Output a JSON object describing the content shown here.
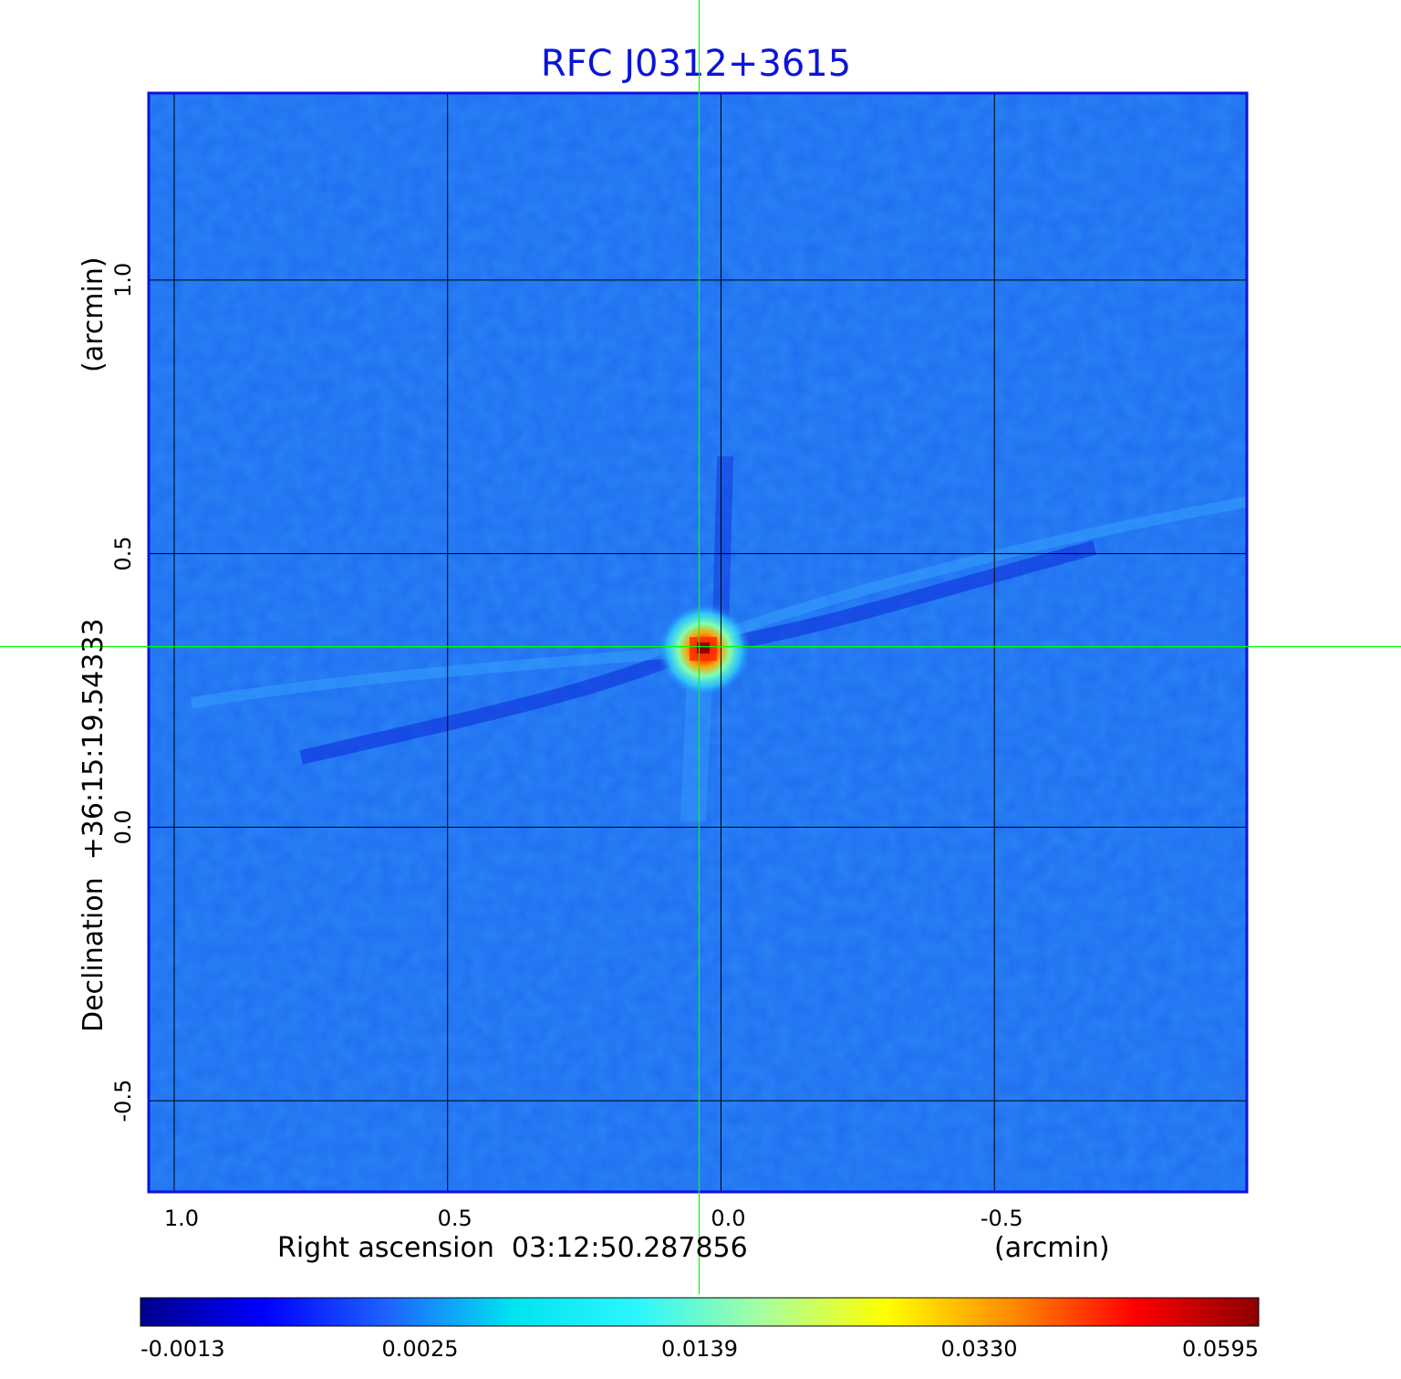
{
  "chart_data": {
    "type": "heatmap",
    "title": "RFC J0312+3615",
    "xlabel": "Right ascension  03:12:50.287856",
    "xlabel_unit": "(arcmin)",
    "ylabel": "Declination  +36:15:19.54333",
    "ylabel_unit": "(arcmin)",
    "x_ticks": [
      "1.0",
      "0.5",
      "0.0",
      "-0.5"
    ],
    "x_tick_values": [
      1.0,
      0.5,
      0.0,
      -0.5
    ],
    "y_ticks": [
      "1.0",
      "0.5",
      "0.0",
      "-0.5"
    ],
    "y_tick_values": [
      1.0,
      0.5,
      0.0,
      -0.5
    ],
    "xlim": [
      1.045,
      -0.96
    ],
    "ylim": [
      -0.665,
      1.34
    ],
    "grid": true,
    "crosshair": {
      "x": 0.04,
      "y": 0.33
    },
    "peak": {
      "x": 0.04,
      "y": 0.33,
      "value": 0.0595
    },
    "colorbar": {
      "ticks": [
        "-0.0013",
        "0.0025",
        "0.0139",
        "0.0330",
        "0.0595"
      ],
      "colors": [
        "#00008c",
        "#0000ff",
        "#1e64ff",
        "#00e4f0",
        "#2cf6ff",
        "#a8ffa0",
        "#ffff00",
        "#ff8c00",
        "#ff0000",
        "#8c0000"
      ]
    },
    "colors": {
      "title": "#0a14d8",
      "background_field": "#1f6cf0",
      "frame": "#0a14d8",
      "grid": "#000000",
      "crosshair": "#00ff00"
    }
  }
}
